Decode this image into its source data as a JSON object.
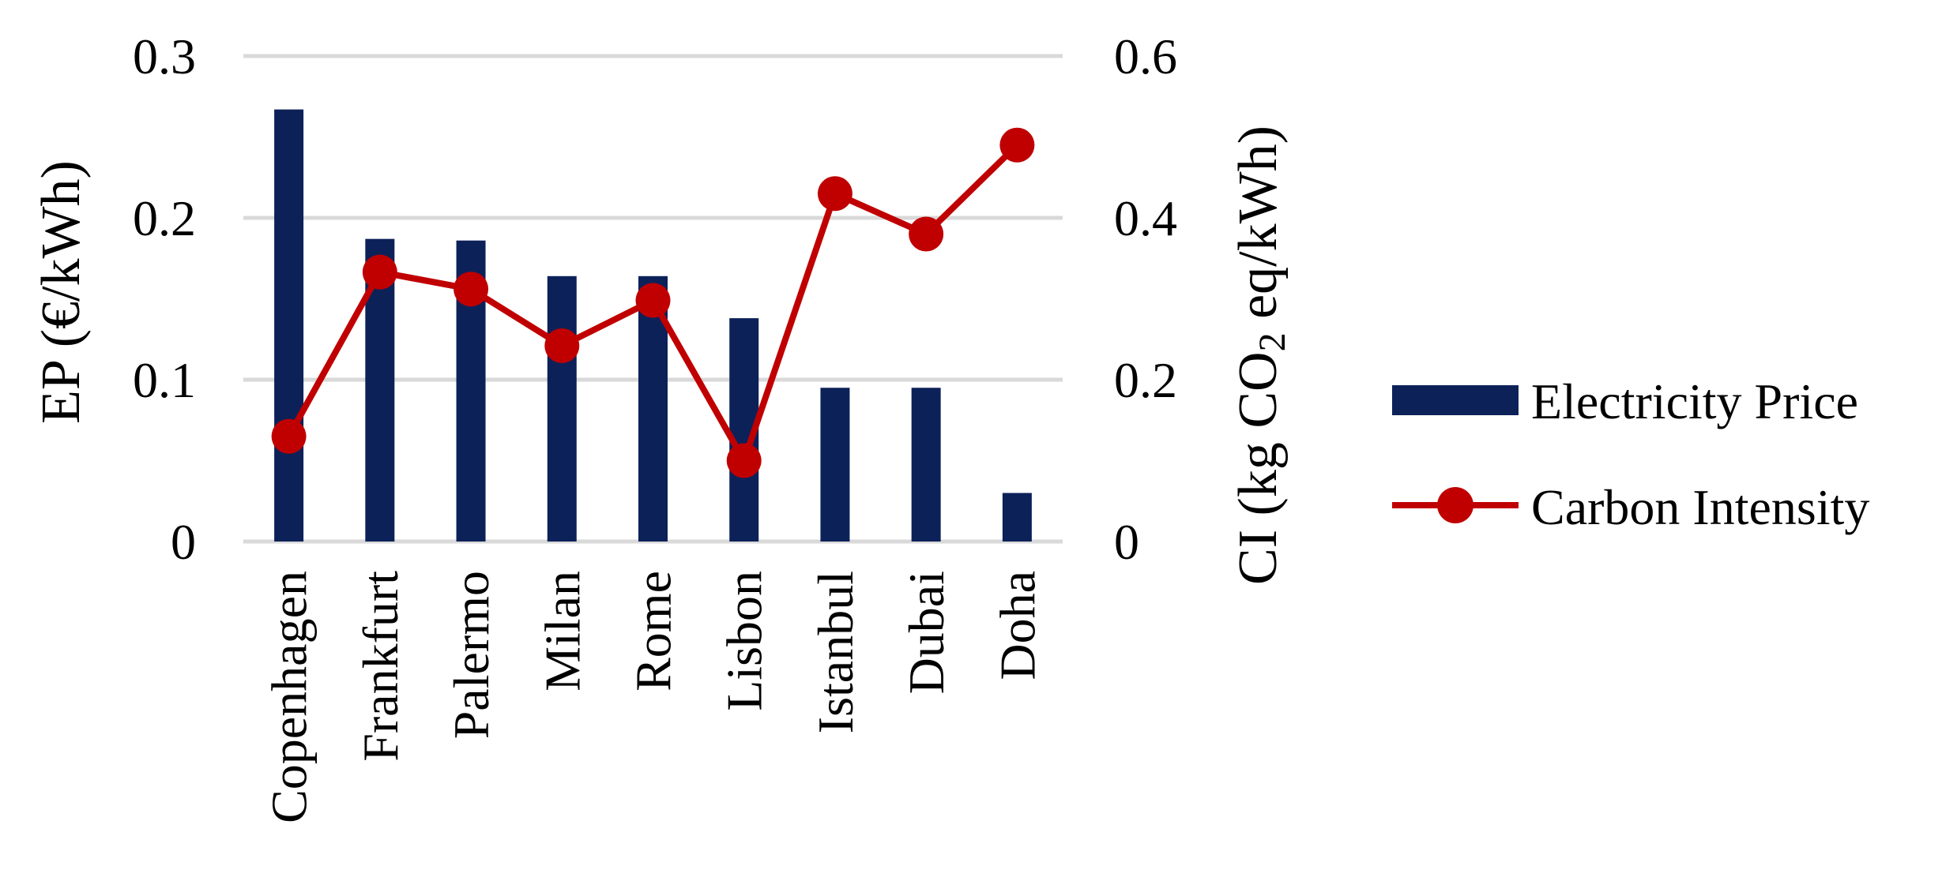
{
  "chart_data": {
    "type": "bar+line",
    "categories": [
      "Copenhagen",
      "Frankfurt",
      "Palermo",
      "Milan",
      "Rome",
      "Lisbon",
      "Istanbul",
      "Dubai",
      "Doha"
    ],
    "series": [
      {
        "name": "Electricity Price",
        "type": "bar",
        "axis": "left",
        "color": "#0d2159",
        "values": [
          0.267,
          0.187,
          0.186,
          0.164,
          0.164,
          0.138,
          0.095,
          0.095,
          0.03
        ]
      },
      {
        "name": "Carbon Intensity",
        "type": "line",
        "axis": "right",
        "color": "#c00000",
        "values": [
          0.13,
          0.333,
          0.312,
          0.242,
          0.298,
          0.1,
          0.43,
          0.38,
          0.49
        ]
      }
    ],
    "y_left": {
      "label": "EP (€/kWh)",
      "ylim": [
        0,
        0.3
      ],
      "ticks": [
        "0",
        "0.1",
        "0.2",
        "0.3"
      ]
    },
    "y_right": {
      "label_main": "CI (kg CO",
      "label_sub": "2",
      "label_tail": " eq/kWh)",
      "ylim": [
        0,
        0.6
      ],
      "ticks": [
        "0",
        "0.2",
        "0.4",
        "0.6"
      ]
    },
    "grid": true,
    "legend": "right",
    "gridline_color": "#d9d9d9"
  }
}
